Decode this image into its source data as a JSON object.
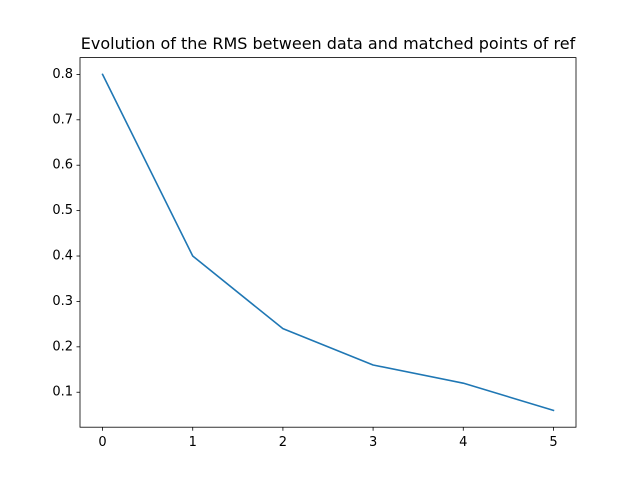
{
  "chart_data": {
    "type": "line",
    "title": "Evolution of the RMS between data and matched points of ref",
    "xlabel": "",
    "ylabel": "",
    "x": [
      0,
      1,
      2,
      3,
      4,
      5
    ],
    "series": [
      {
        "values": [
          0.8,
          0.4,
          0.24,
          0.16,
          0.12,
          0.06
        ],
        "color": "#1f77b4"
      }
    ],
    "xlim": [
      -0.25,
      5.25
    ],
    "ylim": [
      0.023,
      0.837
    ],
    "xticks": [
      0,
      1,
      2,
      3,
      4,
      5
    ],
    "xtick_labels": [
      "0",
      "1",
      "2",
      "3",
      "4",
      "5"
    ],
    "yticks": [
      0.1,
      0.2,
      0.3,
      0.4,
      0.5,
      0.6,
      0.7,
      0.8
    ],
    "ytick_labels": [
      "0.1",
      "0.2",
      "0.3",
      "0.4",
      "0.5",
      "0.6",
      "0.7",
      "0.8"
    ],
    "grid": false,
    "legend": "none"
  }
}
